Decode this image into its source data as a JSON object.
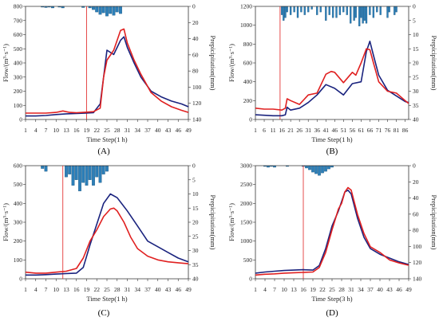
{
  "chart_data": [
    {
      "type": "line",
      "panel_label": "(A)",
      "xlabel": "Time Step(1 h)",
      "ylabel": "Flow/(m³·s⁻¹)",
      "y2label": "Prepicipitation(mm)",
      "ylim": [
        0,
        800
      ],
      "yticks": [
        0,
        100,
        200,
        300,
        400,
        500,
        600,
        700,
        800
      ],
      "y2lim": [
        0,
        140
      ],
      "y2ticks": [
        0,
        20,
        40,
        60,
        80,
        100,
        120,
        140
      ],
      "xlim": [
        1,
        49
      ],
      "xticks": [
        1,
        4,
        7,
        10,
        13,
        16,
        19,
        22,
        25,
        28,
        31,
        34,
        37,
        40,
        43,
        46,
        49
      ],
      "vline_x": 19,
      "series": [
        {
          "color": "#1a237e",
          "x": [
            1,
            4,
            7,
            10,
            13,
            16,
            19,
            21,
            23,
            24,
            25,
            27,
            29,
            30,
            31,
            33,
            35,
            38,
            41,
            44,
            47,
            49
          ],
          "y": [
            25,
            25,
            28,
            35,
            40,
            42,
            45,
            48,
            110,
            300,
            490,
            460,
            560,
            585,
            510,
            400,
            300,
            200,
            160,
            130,
            110,
            90
          ]
        },
        {
          "color": "#e02020",
          "x": [
            1,
            4,
            7,
            10,
            12,
            14,
            16,
            19,
            21,
            23,
            24,
            25,
            27,
            29,
            30,
            31,
            33,
            35,
            38,
            41,
            44,
            47,
            49
          ],
          "y": [
            45,
            45,
            45,
            50,
            60,
            50,
            48,
            52,
            55,
            80,
            300,
            420,
            490,
            630,
            640,
            540,
            420,
            320,
            190,
            130,
            90,
            65,
            50
          ]
        }
      ],
      "bars": {
        "color": "#2d7fb8",
        "x": [
          6,
          7,
          8,
          9,
          11,
          12,
          18,
          20,
          21,
          22,
          23,
          24,
          25,
          26,
          27,
          28,
          29
        ],
        "y": [
          1,
          1.5,
          1,
          2,
          1,
          2,
          1.5,
          2,
          4,
          7,
          10,
          8,
          12,
          9,
          11,
          7,
          9
        ]
      }
    },
    {
      "type": "line",
      "panel_label": "(B)",
      "xlabel": "Time Step(1 h)",
      "ylabel": "Flow/(m³·s⁻¹)",
      "y2label": "Prepicipitation(mm)",
      "ylim": [
        0,
        1200
      ],
      "yticks": [
        0,
        200,
        400,
        600,
        800,
        1000,
        1200
      ],
      "y2lim": [
        0,
        40
      ],
      "y2ticks": [
        0,
        5,
        10,
        15,
        20,
        25,
        30,
        35,
        40
      ],
      "xlim": [
        1,
        88
      ],
      "xticks": [
        1,
        6,
        11,
        16,
        21,
        26,
        31,
        36,
        41,
        46,
        51,
        56,
        61,
        66,
        71,
        76,
        81,
        86
      ],
      "vline_x": 15,
      "series": [
        {
          "color": "#1a237e",
          "x": [
            1,
            6,
            11,
            16,
            18,
            19,
            21,
            26,
            31,
            36,
            41,
            46,
            51,
            56,
            61,
            64,
            66,
            68,
            71,
            76,
            81,
            86,
            88
          ],
          "y": [
            50,
            45,
            40,
            40,
            50,
            130,
            100,
            120,
            180,
            260,
            370,
            330,
            260,
            380,
            400,
            720,
            830,
            680,
            470,
            310,
            250,
            190,
            180
          ]
        },
        {
          "color": "#e02020",
          "x": [
            1,
            6,
            11,
            16,
            18,
            19,
            21,
            26,
            31,
            36,
            41,
            44,
            46,
            51,
            56,
            58,
            61,
            64,
            66,
            68,
            71,
            76,
            81,
            86,
            88
          ],
          "y": [
            120,
            110,
            110,
            100,
            120,
            220,
            200,
            160,
            260,
            280,
            480,
            510,
            500,
            390,
            500,
            470,
            600,
            750,
            740,
            600,
            400,
            300,
            280,
            200,
            170
          ]
        }
      ],
      "bars": {
        "color": "#2d7fb8",
        "x": [
          16,
          17,
          18,
          19,
          21,
          23,
          25,
          27,
          29,
          31,
          33,
          36,
          38,
          41,
          43,
          45,
          47,
          49,
          51,
          53,
          55,
          57,
          58,
          60,
          61,
          62,
          63,
          64,
          66,
          68,
          70,
          72,
          76,
          77,
          80,
          81
        ],
        "y": [
          3,
          5,
          4,
          2,
          3,
          2,
          4,
          2,
          3,
          2,
          1,
          3,
          2,
          5,
          3,
          4,
          4,
          3,
          2,
          3,
          6,
          5,
          4,
          7,
          4,
          6,
          5,
          6,
          3,
          4,
          2,
          3,
          4,
          2,
          3,
          2
        ]
      }
    },
    {
      "type": "line",
      "panel_label": "(C)",
      "xlabel": "Time Step(1 h)",
      "ylabel": "Flow/(m³·s⁻¹)",
      "y2label": "Prepicipitation(mm)",
      "ylim": [
        0,
        600
      ],
      "yticks": [
        0,
        100,
        200,
        300,
        400,
        500,
        600
      ],
      "y2lim": [
        0,
        40
      ],
      "y2ticks": [
        0,
        5,
        10,
        15,
        20,
        25,
        30,
        35,
        40
      ],
      "xlim": [
        1,
        49
      ],
      "xticks": [
        1,
        4,
        7,
        10,
        13,
        16,
        19,
        22,
        25,
        28,
        31,
        34,
        37,
        40,
        43,
        46,
        49
      ],
      "vline_x": 12,
      "series": [
        {
          "color": "#1a237e",
          "x": [
            1,
            4,
            7,
            10,
            13,
            16,
            18,
            20,
            22,
            24,
            26,
            28,
            31,
            34,
            37,
            40,
            43,
            46,
            49
          ],
          "y": [
            20,
            20,
            22,
            25,
            28,
            30,
            60,
            180,
            290,
            400,
            450,
            430,
            360,
            280,
            200,
            170,
            140,
            110,
            90
          ]
        },
        {
          "color": "#e02020",
          "x": [
            1,
            4,
            7,
            10,
            13,
            16,
            18,
            20,
            22,
            24,
            26,
            27,
            28,
            30,
            32,
            34,
            37,
            40,
            43,
            46,
            49
          ],
          "y": [
            35,
            30,
            30,
            35,
            40,
            55,
            110,
            200,
            260,
            330,
            370,
            375,
            360,
            300,
            220,
            160,
            120,
            100,
            90,
            85,
            80
          ]
        }
      ],
      "bars": {
        "color": "#2d7fb8",
        "x": [
          6,
          7,
          13,
          14,
          15,
          16,
          17,
          18,
          19,
          20,
          21,
          22,
          23,
          24,
          25
        ],
        "y": [
          1,
          2,
          4,
          3,
          7,
          5,
          9,
          6,
          7,
          5,
          7,
          4,
          6,
          3,
          2
        ]
      }
    },
    {
      "type": "line",
      "panel_label": "(D)",
      "xlabel": "Time Step(3 h)",
      "ylabel": "Flow/(m³·s⁻¹)",
      "y2label": "Prepicipitation(mm)",
      "ylim": [
        0,
        3000
      ],
      "yticks": [
        0,
        500,
        1000,
        1500,
        2000,
        2500,
        3000
      ],
      "y2lim": [
        0,
        140
      ],
      "y2ticks": [
        0,
        20,
        40,
        60,
        80,
        100,
        120,
        140
      ],
      "xlim": [
        1,
        49
      ],
      "xticks": [
        1,
        4,
        7,
        10,
        13,
        16,
        19,
        22,
        25,
        28,
        31,
        34,
        37,
        40,
        43,
        46,
        49
      ],
      "vline_x": 16,
      "series": [
        {
          "color": "#1a237e",
          "x": [
            1,
            4,
            7,
            10,
            13,
            16,
            19,
            21,
            23,
            25,
            27,
            29,
            30,
            31,
            33,
            35,
            37,
            40,
            43,
            46,
            49
          ],
          "y": [
            150,
            180,
            200,
            220,
            230,
            240,
            230,
            350,
            800,
            1400,
            1800,
            2300,
            2350,
            2250,
            1600,
            1100,
            800,
            650,
            550,
            450,
            380
          ]
        },
        {
          "color": "#e02020",
          "x": [
            1,
            4,
            7,
            10,
            13,
            16,
            19,
            21,
            23,
            25,
            27,
            28,
            29,
            30,
            31,
            33,
            35,
            37,
            40,
            43,
            46,
            49
          ],
          "y": [
            100,
            120,
            130,
            150,
            160,
            170,
            180,
            300,
            700,
            1300,
            1850,
            2000,
            2300,
            2420,
            2350,
            1700,
            1200,
            850,
            700,
            500,
            420,
            360
          ]
        }
      ],
      "bars": {
        "color": "#2d7fb8",
        "x": [
          4,
          5,
          6,
          7,
          11,
          16,
          17,
          18,
          19,
          20,
          21,
          22,
          23,
          24,
          25
        ],
        "y": [
          1,
          2,
          1,
          2,
          1,
          1,
          3,
          5,
          8,
          10,
          12,
          9,
          7,
          4,
          2
        ]
      }
    }
  ]
}
